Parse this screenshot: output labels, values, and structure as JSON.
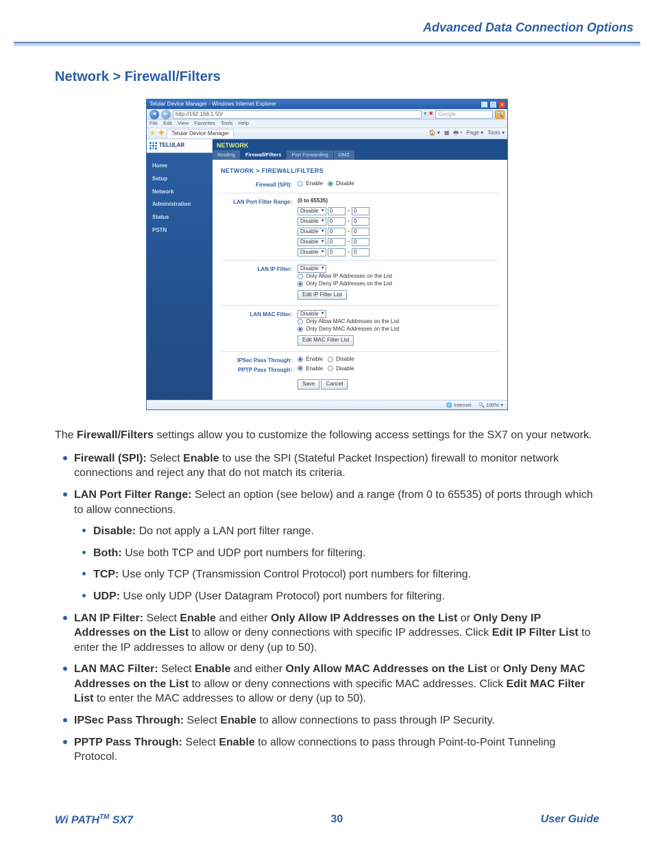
{
  "header": {
    "title": "Advanced Data Connection Options"
  },
  "section": {
    "title": "Network > Firewall/Filters"
  },
  "footer": {
    "left_prefix": "Wi PATH",
    "left_tm": "TM",
    "left_suffix": " SX7",
    "page": "30",
    "right": "User Guide"
  },
  "screenshot": {
    "window_title": "Telular Device Manager - Windows Internet Explorer",
    "address": "http://192.168.1.50/",
    "search_placeholder": "Google",
    "ie_menu": [
      "File",
      "Edit",
      "View",
      "Favorites",
      "Tools",
      "Help"
    ],
    "tab_label": "Telular Device Manager",
    "ie_tools": [
      "Page ▾",
      "Tools ▾"
    ],
    "brand": "TELULAR",
    "sidebar": [
      "Home",
      "Setup",
      "Network",
      "Administration",
      "Status",
      "PSTN"
    ],
    "panel_header": "NETWORK",
    "panel_tabs": [
      "Routing",
      "Firewall/Filters",
      "Port Forwarding",
      "DMZ"
    ],
    "panel_active_tab": 1,
    "breadcrumb": "NETWORK > FIREWALL/FILTERS",
    "firewall_spi": {
      "label": "Firewall (SPI):",
      "enable": "Enable",
      "disable": "Disable",
      "selected": "disable"
    },
    "port_range": {
      "label": "LAN Port Filter Range:",
      "hint": "(0 to 65535)",
      "select_default": "Disable",
      "rows": [
        {
          "from": "0",
          "to": "0"
        },
        {
          "from": "0",
          "to": "0"
        },
        {
          "from": "0",
          "to": "0"
        },
        {
          "from": "0",
          "to": "0"
        },
        {
          "from": "0",
          "to": "0"
        }
      ]
    },
    "ip_filter": {
      "label": "LAN IP Filter:",
      "select_default": "Disable",
      "opt_allow": "Only Allow IP Addresses on the List",
      "opt_deny": "Only Deny IP Addresses on the List",
      "selected": "deny",
      "button": "Edit IP Filter List"
    },
    "mac_filter": {
      "label": "LAN MAC Filter:",
      "select_default": "Disable",
      "opt_allow": "Only Allow MAC Addresses on the List",
      "opt_deny": "Only Deny MAC Addresses on the List",
      "selected": "deny",
      "button": "Edit MAC Filter List"
    },
    "ipsec": {
      "label": "IPSec Pass Through:",
      "enable": "Enable",
      "disable": "Disable",
      "selected": "enable"
    },
    "pptp": {
      "label": "PPTP Pass Through:",
      "enable": "Enable",
      "disable": "Disable",
      "selected": "enable"
    },
    "save": "Save",
    "cancel": "Cancel",
    "status_internet": "Internet",
    "status_zoom": "100%"
  },
  "doc": {
    "intro_1a": "The ",
    "intro_1b": "Firewall/Filters",
    "intro_1c": " settings allow you to customize the following access settings for the SX7 on your network.",
    "b1a": "Firewall (SPI):",
    "b1b": " Select ",
    "b1c": "Enable",
    "b1d": " to use the SPI (Stateful Packet Inspection) firewall to monitor network connections and reject any that do not match its criteria.",
    "b2a": "LAN Port Filter Range:",
    "b2b": " Select an option (see below) and a range (from 0 to 65535) of ports through which to allow connections.",
    "b2s1a": "Disable:",
    "b2s1b": " Do not apply a LAN port filter range.",
    "b2s2a": "Both:",
    "b2s2b": " Use both TCP and UDP port numbers for filtering.",
    "b2s3a": "TCP:",
    "b2s3b": " Use only TCP (Transmission Control Protocol) port numbers for filtering.",
    "b2s4a": "UDP:",
    "b2s4b": " Use only UDP (User Datagram Protocol) port numbers for filtering.",
    "b3a": "LAN IP Filter:",
    "b3b": " Select ",
    "b3c": "Enable",
    "b3d": " and either ",
    "b3e": "Only Allow IP Addresses on the List",
    "b3f": " or ",
    "b3g": "Only Deny IP Addresses on the List",
    "b3h": " to allow or deny connections with specific IP addresses. Click ",
    "b3i": "Edit IP Filter List",
    "b3j": " to enter the IP addresses to allow or deny (up to 50).",
    "b4a": "LAN MAC Filter:",
    "b4b": " Select ",
    "b4c": "Enable",
    "b4d": " and either ",
    "b4e": "Only Allow MAC Addresses on the List",
    "b4f": " or ",
    "b4g": "Only Deny MAC Addresses on the List",
    "b4h": " to allow or deny connections with specific MAC addresses. Click ",
    "b4i": "Edit MAC Filter List",
    "b4j": " to enter the MAC addresses to allow or deny (up to 50).",
    "b5a": "IPSec Pass Through:",
    "b5b": " Select ",
    "b5c": "Enable",
    "b5d": " to allow connections to pass through IP Security.",
    "b6a": "PPTP Pass Through:",
    "b6b": " Select ",
    "b6c": "Enable",
    "b6d": " to allow connections to pass through Point-to-Point Tunneling Protocol."
  },
  "colors": {
    "accent": "#2b5ea3"
  }
}
